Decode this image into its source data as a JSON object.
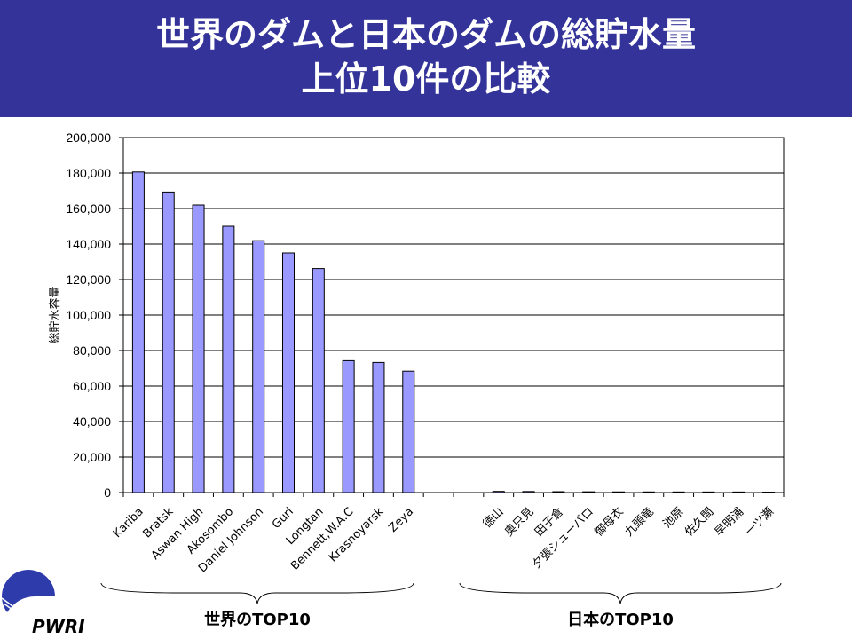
{
  "title": {
    "line1": "世界のダムと日本のダムの総貯水量",
    "line2": "上位10件の比較"
  },
  "logo_text": "PWRI",
  "colors": {
    "banner": "#333399",
    "bar": "#9999FF"
  },
  "chart_data": {
    "type": "bar",
    "ylabel": "総貯水容量",
    "ylim": [
      0,
      200000
    ],
    "yticks": [
      0,
      20000,
      40000,
      60000,
      80000,
      100000,
      120000,
      140000,
      160000,
      180000,
      200000
    ],
    "ytick_labels": [
      "0",
      "20,000",
      "40,000",
      "60,000",
      "80,000",
      "100,000",
      "120,000",
      "140,000",
      "160,000",
      "180,000",
      "200,000"
    ],
    "grid": true,
    "categories": [
      "Kariba",
      "Bratsk",
      "Aswan High",
      "Akosombo",
      "Daniel Johnson",
      "Guri",
      "Longtan",
      "Bennett,W.A.C",
      "Krasnoyarsk",
      "Zeya",
      "",
      "",
      "徳山",
      "奥只見",
      "田子倉",
      "夕張シューパロ",
      "御母衣",
      "九頭竜",
      "池原",
      "佐久間",
      "早明浦",
      "一ツ瀬"
    ],
    "values": [
      180600,
      169300,
      162000,
      150000,
      141900,
      135000,
      126200,
      74300,
      73300,
      68400,
      null,
      null,
      660,
      601,
      494,
      427,
      370,
      353,
      338,
      327,
      316,
      261
    ],
    "groups": [
      {
        "label": "世界のTOP10"
      },
      {
        "label": "日本のTOP10"
      }
    ]
  }
}
